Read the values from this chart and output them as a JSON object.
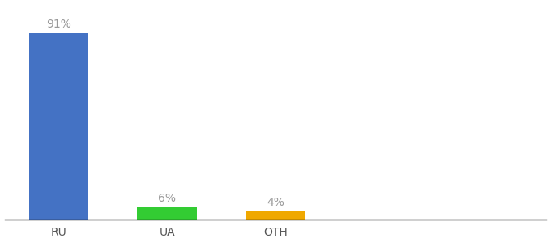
{
  "categories": [
    "RU",
    "UA",
    "OTH"
  ],
  "values": [
    91,
    6,
    4
  ],
  "bar_colors": [
    "#4472c4",
    "#33cc33",
    "#f0a800"
  ],
  "xlabel": "",
  "ylabel": "",
  "ylim": [
    0,
    105
  ],
  "background_color": "#ffffff",
  "label_color": "#999999",
  "tick_color": "#555555",
  "bar_width": 0.55,
  "label_fontsize": 10,
  "tick_fontsize": 10
}
